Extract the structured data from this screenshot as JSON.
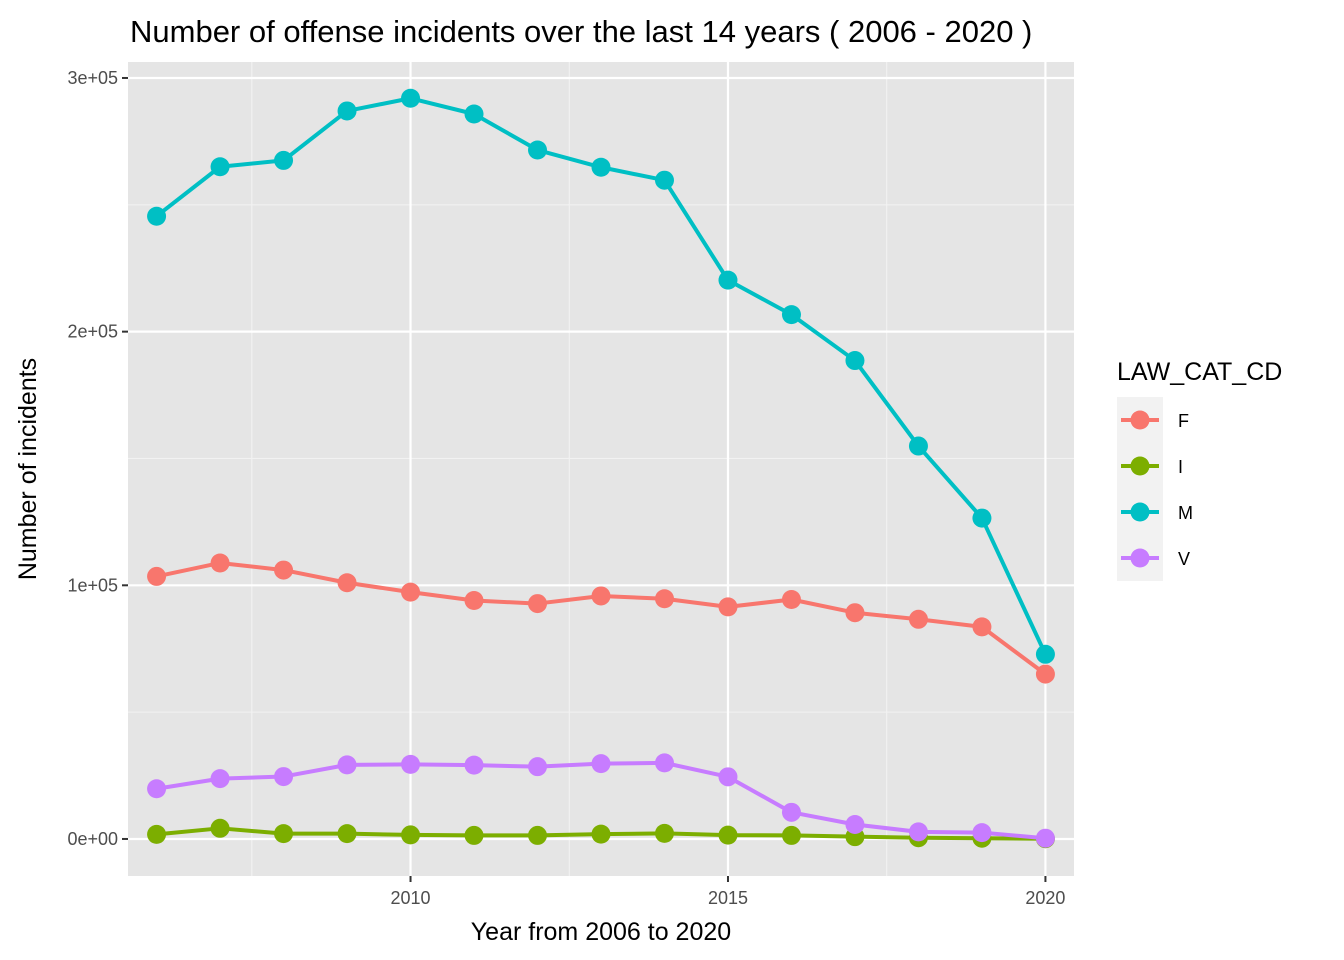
{
  "chart_data": {
    "type": "line",
    "title": "Number of offense incidents over the last  14  years ( 2006 - 2020 )",
    "xlabel": "Year from 2006 to 2020",
    "ylabel": "Number of incidents",
    "xlim": [
      2005.55,
      2020.45
    ],
    "ylim": [
      -14600,
      306300
    ],
    "x_ticks": [
      2010,
      2015,
      2020
    ],
    "x_tick_labels": [
      "2010",
      "2015",
      "2020"
    ],
    "y_ticks": [
      0,
      100000,
      200000,
      300000
    ],
    "y_tick_labels": [
      "0e+00",
      "1e+05",
      "2e+05",
      "3e+05"
    ],
    "grid": true,
    "panel_background": "#e5e5e5",
    "legend": {
      "title": "LAW_CAT_CD",
      "position": "right"
    },
    "x": [
      2006,
      2007,
      2008,
      2009,
      2010,
      2011,
      2012,
      2013,
      2014,
      2015,
      2016,
      2017,
      2018,
      2019,
      2020
    ],
    "series": [
      {
        "name": "F",
        "color": "#F8766D",
        "values": [
          103500,
          108800,
          106000,
          101000,
          97300,
          94000,
          92800,
          95800,
          94700,
          91500,
          94400,
          89200,
          86600,
          83600,
          65000
        ]
      },
      {
        "name": "I",
        "color": "#7CAE00",
        "values": [
          1800,
          4200,
          2100,
          2100,
          1600,
          1400,
          1400,
          1900,
          2200,
          1500,
          1400,
          900,
          500,
          300,
          100
        ]
      },
      {
        "name": "M",
        "color": "#00BFC4",
        "values": [
          245500,
          265000,
          267500,
          287000,
          292000,
          285800,
          271600,
          264800,
          259700,
          220300,
          206700,
          188600,
          154900,
          126500,
          72800
        ]
      },
      {
        "name": "V",
        "color": "#C77CFF",
        "values": [
          19800,
          23800,
          24600,
          29200,
          29400,
          29100,
          28500,
          29700,
          30000,
          24500,
          10500,
          5700,
          2800,
          2500,
          300
        ]
      }
    ]
  }
}
